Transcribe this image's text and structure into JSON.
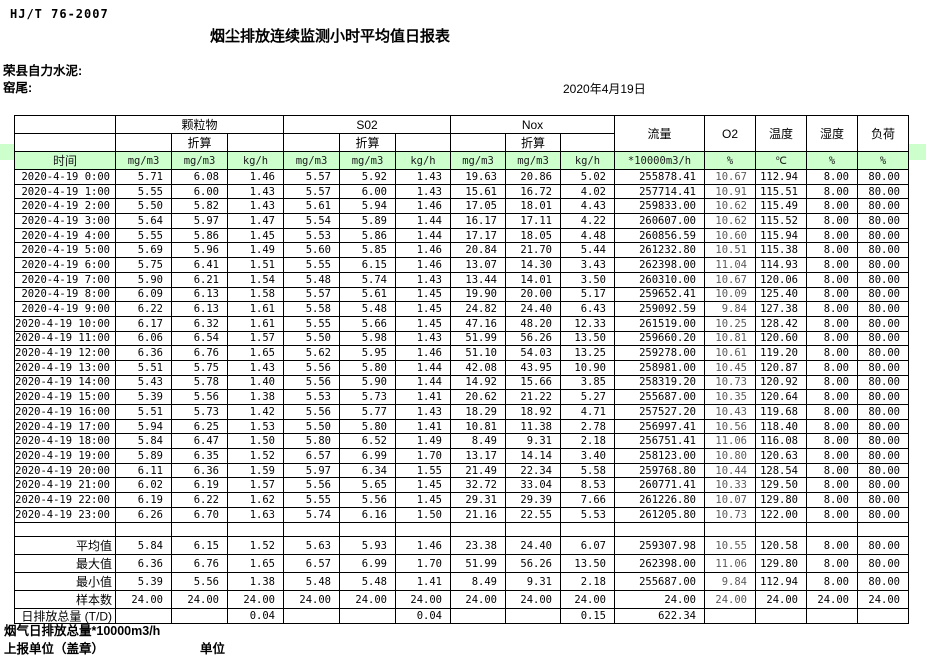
{
  "doc": {
    "standard": "HJ/T  76-2007",
    "title": "烟尘排放连续监测小时平均值日报表",
    "company": "荣县自力水泥:",
    "station": "窑尾:",
    "date": "2020年4月19日",
    "footer_total_line": "烟气日排放总量*10000m3/h",
    "footer_report_unit": "上报单位（盖章）",
    "footer_unit": "单位"
  },
  "colors": {
    "header_green": "#ccffcc",
    "o2_text": "#5a5a5a",
    "border": "#000000"
  },
  "table": {
    "time_header": "时间",
    "converted_label": "折算",
    "groups": [
      "颗粒物",
      "S02",
      "Nox"
    ],
    "scalar_cols": [
      "流量",
      "O2",
      "温度",
      "湿度",
      "负荷"
    ],
    "units": [
      "mg/m3",
      "mg/m3",
      "kg/h",
      "mg/m3",
      "mg/m3",
      "kg/h",
      "mg/m3",
      "mg/m3",
      "kg/h",
      "*10000m3/h",
      "%",
      "℃",
      "%",
      "%"
    ],
    "rows": [
      {
        "time": "2020-4-19 0:00",
        "values": [
          "5.71",
          "6.08",
          "1.46",
          "5.57",
          "5.92",
          "1.43",
          "19.63",
          "20.86",
          "5.02",
          "255878.41",
          "10.67",
          "112.94",
          "8.00",
          "80.00"
        ]
      },
      {
        "time": "2020-4-19 1:00",
        "values": [
          "5.55",
          "6.00",
          "1.43",
          "5.57",
          "6.00",
          "1.43",
          "15.61",
          "16.72",
          "4.02",
          "257714.41",
          "10.91",
          "115.51",
          "8.00",
          "80.00"
        ]
      },
      {
        "time": "2020-4-19 2:00",
        "values": [
          "5.50",
          "5.82",
          "1.43",
          "5.61",
          "5.94",
          "1.46",
          "17.05",
          "18.01",
          "4.43",
          "259833.00",
          "10.62",
          "115.49",
          "8.00",
          "80.00"
        ]
      },
      {
        "time": "2020-4-19 3:00",
        "values": [
          "5.64",
          "5.97",
          "1.47",
          "5.54",
          "5.89",
          "1.44",
          "16.17",
          "17.11",
          "4.22",
          "260607.00",
          "10.62",
          "115.52",
          "8.00",
          "80.00"
        ]
      },
      {
        "time": "2020-4-19 4:00",
        "values": [
          "5.55",
          "5.86",
          "1.45",
          "5.53",
          "5.86",
          "1.44",
          "17.17",
          "18.05",
          "4.48",
          "260856.59",
          "10.60",
          "115.94",
          "8.00",
          "80.00"
        ]
      },
      {
        "time": "2020-4-19 5:00",
        "values": [
          "5.69",
          "5.96",
          "1.49",
          "5.60",
          "5.85",
          "1.46",
          "20.84",
          "21.70",
          "5.44",
          "261232.80",
          "10.51",
          "115.38",
          "8.00",
          "80.00"
        ]
      },
      {
        "time": "2020-4-19 6:00",
        "values": [
          "5.75",
          "6.41",
          "1.51",
          "5.55",
          "6.15",
          "1.46",
          "13.07",
          "14.30",
          "3.43",
          "262398.00",
          "11.04",
          "114.93",
          "8.00",
          "80.00"
        ]
      },
      {
        "time": "2020-4-19 7:00",
        "values": [
          "5.90",
          "6.21",
          "1.54",
          "5.48",
          "5.74",
          "1.43",
          "13.44",
          "14.01",
          "3.50",
          "260310.00",
          "10.67",
          "120.06",
          "8.00",
          "80.00"
        ]
      },
      {
        "time": "2020-4-19 8:00",
        "values": [
          "6.09",
          "6.13",
          "1.58",
          "5.57",
          "5.61",
          "1.45",
          "19.90",
          "20.00",
          "5.17",
          "259652.41",
          "10.09",
          "125.40",
          "8.00",
          "80.00"
        ]
      },
      {
        "time": "2020-4-19 9:00",
        "values": [
          "6.22",
          "6.13",
          "1.61",
          "5.58",
          "5.48",
          "1.45",
          "24.82",
          "24.40",
          "6.43",
          "259092.59",
          "9.84",
          "127.38",
          "8.00",
          "80.00"
        ]
      },
      {
        "time": "2020-4-19 10:00",
        "values": [
          "6.17",
          "6.32",
          "1.61",
          "5.55",
          "5.66",
          "1.45",
          "47.16",
          "48.20",
          "12.33",
          "261519.00",
          "10.25",
          "128.42",
          "8.00",
          "80.00"
        ]
      },
      {
        "time": "2020-4-19 11:00",
        "values": [
          "6.06",
          "6.54",
          "1.57",
          "5.50",
          "5.98",
          "1.43",
          "51.99",
          "56.26",
          "13.50",
          "259660.20",
          "10.81",
          "120.60",
          "8.00",
          "80.00"
        ]
      },
      {
        "time": "2020-4-19 12:00",
        "values": [
          "6.36",
          "6.76",
          "1.65",
          "5.62",
          "5.95",
          "1.46",
          "51.10",
          "54.03",
          "13.25",
          "259278.00",
          "10.61",
          "119.20",
          "8.00",
          "80.00"
        ]
      },
      {
        "time": "2020-4-19 13:00",
        "values": [
          "5.51",
          "5.75",
          "1.43",
          "5.56",
          "5.80",
          "1.44",
          "42.08",
          "43.95",
          "10.90",
          "258981.00",
          "10.45",
          "120.87",
          "8.00",
          "80.00"
        ]
      },
      {
        "time": "2020-4-19 14:00",
        "values": [
          "5.43",
          "5.78",
          "1.40",
          "5.56",
          "5.90",
          "1.44",
          "14.92",
          "15.66",
          "3.85",
          "258319.20",
          "10.73",
          "120.92",
          "8.00",
          "80.00"
        ]
      },
      {
        "time": "2020-4-19 15:00",
        "values": [
          "5.39",
          "5.56",
          "1.38",
          "5.53",
          "5.73",
          "1.41",
          "20.62",
          "21.22",
          "5.27",
          "255687.00",
          "10.35",
          "120.64",
          "8.00",
          "80.00"
        ]
      },
      {
        "time": "2020-4-19 16:00",
        "values": [
          "5.51",
          "5.73",
          "1.42",
          "5.56",
          "5.77",
          "1.43",
          "18.29",
          "18.92",
          "4.71",
          "257527.20",
          "10.43",
          "119.68",
          "8.00",
          "80.00"
        ]
      },
      {
        "time": "2020-4-19 17:00",
        "values": [
          "5.94",
          "6.25",
          "1.53",
          "5.50",
          "5.80",
          "1.41",
          "10.81",
          "11.38",
          "2.78",
          "256997.41",
          "10.56",
          "118.40",
          "8.00",
          "80.00"
        ]
      },
      {
        "time": "2020-4-19 18:00",
        "values": [
          "5.84",
          "6.47",
          "1.50",
          "5.80",
          "6.52",
          "1.49",
          "8.49",
          "9.31",
          "2.18",
          "256751.41",
          "11.06",
          "116.08",
          "8.00",
          "80.00"
        ]
      },
      {
        "time": "2020-4-19 19:00",
        "values": [
          "5.89",
          "6.35",
          "1.52",
          "6.57",
          "6.99",
          "1.70",
          "13.17",
          "14.14",
          "3.40",
          "258123.00",
          "10.80",
          "120.63",
          "8.00",
          "80.00"
        ]
      },
      {
        "time": "2020-4-19 20:00",
        "values": [
          "6.11",
          "6.36",
          "1.59",
          "5.97",
          "6.34",
          "1.55",
          "21.49",
          "22.34",
          "5.58",
          "259768.80",
          "10.44",
          "128.54",
          "8.00",
          "80.00"
        ]
      },
      {
        "time": "2020-4-19 21:00",
        "values": [
          "6.02",
          "6.19",
          "1.57",
          "5.56",
          "5.65",
          "1.45",
          "32.72",
          "33.04",
          "8.53",
          "260771.41",
          "10.33",
          "129.50",
          "8.00",
          "80.00"
        ]
      },
      {
        "time": "2020-4-19 22:00",
        "values": [
          "6.19",
          "6.22",
          "1.62",
          "5.55",
          "5.56",
          "1.45",
          "29.31",
          "29.39",
          "7.66",
          "261226.80",
          "10.07",
          "129.80",
          "8.00",
          "80.00"
        ]
      },
      {
        "time": "2020-4-19 23:00",
        "values": [
          "6.26",
          "6.70",
          "1.63",
          "5.74",
          "6.16",
          "1.50",
          "21.16",
          "22.55",
          "5.53",
          "261205.80",
          "10.73",
          "122.00",
          "8.00",
          "80.00"
        ]
      }
    ],
    "summary": [
      {
        "label": "平均值",
        "values": [
          "5.84",
          "6.15",
          "1.52",
          "5.63",
          "5.93",
          "1.46",
          "23.38",
          "24.40",
          "6.07",
          "259307.98",
          "10.55",
          "120.58",
          "8.00",
          "80.00"
        ]
      },
      {
        "label": "最大值",
        "values": [
          "6.36",
          "6.76",
          "1.65",
          "6.57",
          "6.99",
          "1.70",
          "51.99",
          "56.26",
          "13.50",
          "262398.00",
          "11.06",
          "129.80",
          "8.00",
          "80.00"
        ]
      },
      {
        "label": "最小值",
        "values": [
          "5.39",
          "5.56",
          "1.38",
          "5.48",
          "5.48",
          "1.41",
          "8.49",
          "9.31",
          "2.18",
          "255687.00",
          "9.84",
          "112.94",
          "8.00",
          "80.00"
        ]
      },
      {
        "label": "样本数",
        "values": [
          "24.00",
          "24.00",
          "24.00",
          "24.00",
          "24.00",
          "24.00",
          "24.00",
          "24.00",
          "24.00",
          "24.00",
          "24.00",
          "24.00",
          "24.00",
          "24.00"
        ]
      },
      {
        "label": "日排放总量 (T/D)",
        "values": [
          "",
          "",
          "0.04",
          "",
          "",
          "0.04",
          "",
          "",
          "0.15",
          "622.34",
          "",
          "",
          "",
          ""
        ]
      }
    ]
  }
}
